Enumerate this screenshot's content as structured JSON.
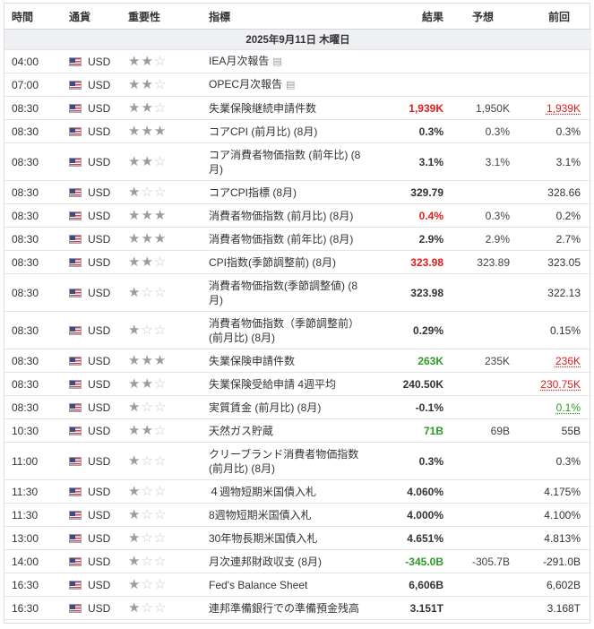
{
  "headers": {
    "time": "時間",
    "currency": "通貨",
    "importance": "重要性",
    "event": "指標",
    "actual": "結果",
    "forecast": "予想",
    "previous": "前回"
  },
  "date_label": "2025年9月11日 木曜日",
  "colors": {
    "negative": "#e31c1c",
    "positive": "#2c9c25",
    "date_row_bg": "#eef0f3"
  },
  "rows": [
    {
      "time": "04:00",
      "cur": "USD",
      "stars": 2,
      "event": "IEA月次報告",
      "actual": "",
      "forecast": "",
      "previous": "",
      "doc": true
    },
    {
      "time": "07:00",
      "cur": "USD",
      "stars": 2,
      "event": "OPEC月次報告",
      "actual": "",
      "forecast": "",
      "previous": "",
      "doc": true
    },
    {
      "time": "08:30",
      "cur": "USD",
      "stars": 2,
      "event": "失業保険継続申請件数",
      "actual": "1,939K",
      "forecast": "1,950K",
      "previous": "1,939K",
      "actual_color": "red",
      "prev_style": "ul-red"
    },
    {
      "time": "08:30",
      "cur": "USD",
      "stars": 3,
      "event": "コアCPI (前月比) (8月)",
      "actual": "0.3%",
      "forecast": "0.3%",
      "previous": "0.3%"
    },
    {
      "time": "08:30",
      "cur": "USD",
      "stars": 2,
      "event": "コア消費者物価指数 (前年比) (8月)",
      "actual": "3.1%",
      "forecast": "3.1%",
      "previous": "3.1%",
      "tall": true
    },
    {
      "time": "08:30",
      "cur": "USD",
      "stars": 1,
      "event": "コアCPI指標 (8月)",
      "actual": "329.79",
      "forecast": "",
      "previous": "328.66"
    },
    {
      "time": "08:30",
      "cur": "USD",
      "stars": 3,
      "event": "消費者物価指数 (前月比) (8月)",
      "actual": "0.4%",
      "forecast": "0.3%",
      "previous": "0.2%",
      "actual_color": "red"
    },
    {
      "time": "08:30",
      "cur": "USD",
      "stars": 3,
      "event": "消費者物価指数 (前年比) (8月)",
      "actual": "2.9%",
      "forecast": "2.9%",
      "previous": "2.7%"
    },
    {
      "time": "08:30",
      "cur": "USD",
      "stars": 2,
      "event": "CPI指数(季節調整前) (8月)",
      "actual": "323.98",
      "forecast": "323.89",
      "previous": "323.05",
      "actual_color": "red"
    },
    {
      "time": "08:30",
      "cur": "USD",
      "stars": 1,
      "event": "消費者物価指数(季節調整値) (8月)",
      "actual": "323.98",
      "forecast": "",
      "previous": "322.13",
      "tall": true
    },
    {
      "time": "08:30",
      "cur": "USD",
      "stars": 1,
      "event": "消費者物価指数（季節調整前）(前月比) (8月)",
      "actual": "0.29%",
      "forecast": "",
      "previous": "0.15%",
      "tall": true
    },
    {
      "time": "08:30",
      "cur": "USD",
      "stars": 3,
      "event": "失業保険申請件数",
      "actual": "263K",
      "forecast": "235K",
      "previous": "236K",
      "actual_color": "green",
      "prev_style": "ul-red"
    },
    {
      "time": "08:30",
      "cur": "USD",
      "stars": 2,
      "event": "失業保険受給申請 4週平均",
      "actual": "240.50K",
      "forecast": "",
      "previous": "230.75K",
      "prev_style": "ul-red"
    },
    {
      "time": "08:30",
      "cur": "USD",
      "stars": 1,
      "event": "実質賃金 (前月比) (8月)",
      "actual": "-0.1%",
      "forecast": "",
      "previous": "0.1%",
      "prev_style": "ul-green"
    },
    {
      "time": "10:30",
      "cur": "USD",
      "stars": 2,
      "event": "天然ガス貯蔵",
      "actual": "71B",
      "forecast": "69B",
      "previous": "55B",
      "actual_color": "green"
    },
    {
      "time": "11:00",
      "cur": "USD",
      "stars": 1,
      "event": "クリーブランド消費者物価指数 (前月比) (8月)",
      "actual": "0.3%",
      "forecast": "",
      "previous": "0.3%",
      "tall": true
    },
    {
      "time": "11:30",
      "cur": "USD",
      "stars": 1,
      "event": "４週物短期米国債入札",
      "actual": "4.060%",
      "forecast": "",
      "previous": "4.175%"
    },
    {
      "time": "11:30",
      "cur": "USD",
      "stars": 1,
      "event": "8週物短期米国債入札",
      "actual": "4.000%",
      "forecast": "",
      "previous": "4.100%"
    },
    {
      "time": "13:00",
      "cur": "USD",
      "stars": 1,
      "event": "30年物長期米国債入札",
      "actual": "4.651%",
      "forecast": "",
      "previous": "4.813%"
    },
    {
      "time": "14:00",
      "cur": "USD",
      "stars": 1,
      "event": "月次連邦財政収支 (8月)",
      "actual": "-345.0B",
      "forecast": "-305.7B",
      "previous": "-291.0B",
      "actual_color": "green"
    },
    {
      "time": "16:30",
      "cur": "USD",
      "stars": 1,
      "event": "Fed's Balance Sheet",
      "actual": "6,606B",
      "forecast": "",
      "previous": "6,602B"
    },
    {
      "time": "16:30",
      "cur": "USD",
      "stars": 1,
      "event": "連邦準備銀行での準備預金残高",
      "actual": "3.151T",
      "forecast": "",
      "previous": "3.168T"
    }
  ]
}
